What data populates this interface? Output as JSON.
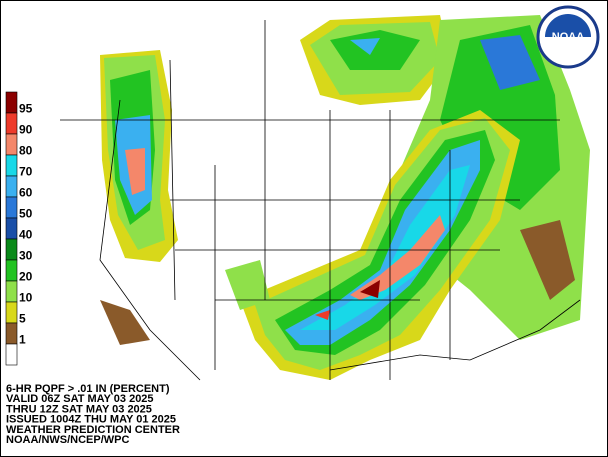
{
  "legend": [
    {
      "label": "95",
      "color": "#8b0000"
    },
    {
      "label": "90",
      "color": "#ee3b2b"
    },
    {
      "label": "80",
      "color": "#f4876a"
    },
    {
      "label": "70",
      "color": "#18d8e8"
    },
    {
      "label": "60",
      "color": "#3ab0f0"
    },
    {
      "label": "50",
      "color": "#2a78d8"
    },
    {
      "label": "40",
      "color": "#1a4fa8"
    },
    {
      "label": "30",
      "color": "#0a8a1a"
    },
    {
      "label": "20",
      "color": "#22c322"
    },
    {
      "label": "10",
      "color": "#8fe04a"
    },
    {
      "label": "5",
      "color": "#d8d81a"
    },
    {
      "label": "1",
      "color": "#8a5a2a"
    },
    {
      "label": "",
      "color": "#ffffff"
    }
  ],
  "info": [
    "6-HR PQPF > .01 IN (PERCENT)",
    "VALID 06Z SAT MAY 03 2025",
    "THRU 12Z SAT MAY 03 2025",
    "ISSUED 1004Z THU MAY 01 2025",
    "WEATHER PREDICTION CENTER",
    "NOAA/NWS/NCEP/WPC"
  ],
  "logo": "NOAA"
}
